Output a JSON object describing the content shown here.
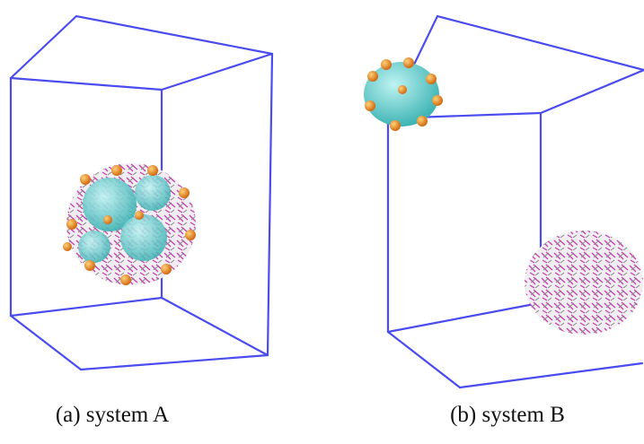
{
  "figure": {
    "panels": [
      {
        "caption": "(a) system A"
      },
      {
        "caption": "(b) system B"
      }
    ]
  }
}
